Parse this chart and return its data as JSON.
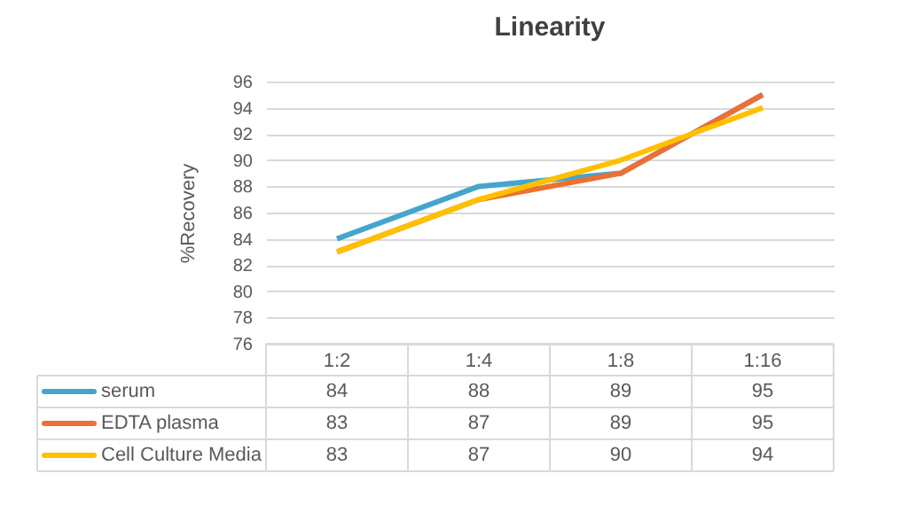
{
  "chart_data": {
    "type": "line",
    "title": "Linearity",
    "ylabel": "%Recovery",
    "categories": [
      "1:2",
      "1:4",
      "1:8",
      "1:16"
    ],
    "series": [
      {
        "name": "serum",
        "color": "#45a5cc",
        "values": [
          84,
          88,
          89,
          95
        ]
      },
      {
        "name": "EDTA plasma",
        "color": "#ec7033",
        "values": [
          83,
          87,
          89,
          95
        ]
      },
      {
        "name": "Cell Culture Media",
        "color": "#ffc000",
        "values": [
          83,
          87,
          90,
          94
        ]
      }
    ],
    "ylim": [
      76,
      96
    ],
    "yticks": [
      76,
      78,
      80,
      82,
      84,
      86,
      88,
      90,
      92,
      94,
      96
    ],
    "grid": "y",
    "legend": "bottom",
    "data_labels": true,
    "line_style": "solid",
    "marker": "none"
  }
}
